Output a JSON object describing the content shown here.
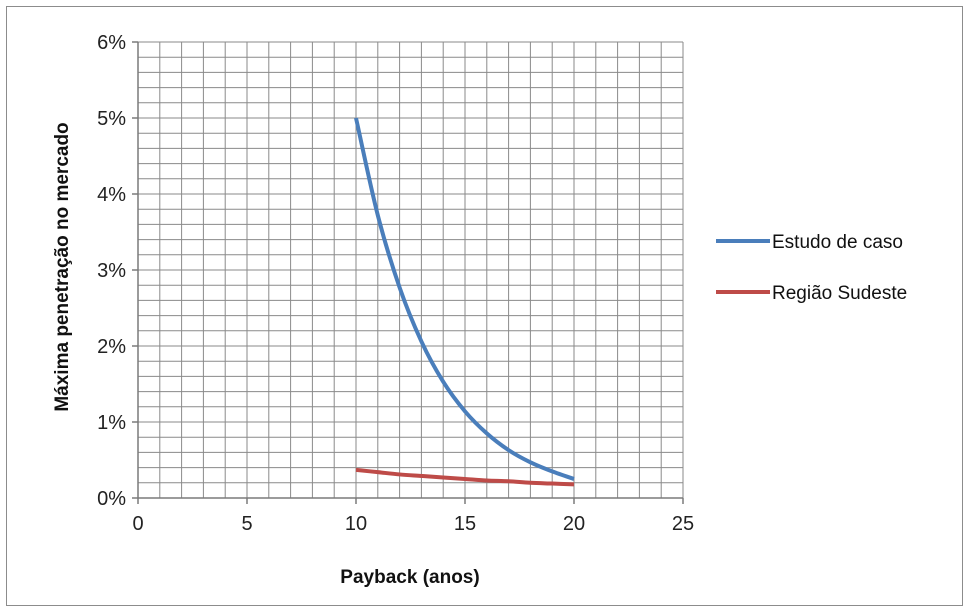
{
  "chart_data": {
    "type": "line",
    "title": "",
    "xlabel": "Payback (anos)",
    "ylabel": "Máxima penetração no mercado",
    "xlim": [
      0,
      25
    ],
    "ylim": [
      0,
      0.06
    ],
    "x_ticks": [
      0,
      5,
      10,
      15,
      20,
      25
    ],
    "x_tick_labels": [
      "0",
      "5",
      "10",
      "15",
      "20",
      "25"
    ],
    "y_ticks": [
      0,
      0.01,
      0.02,
      0.03,
      0.04,
      0.05,
      0.06
    ],
    "y_tick_labels": [
      "0%",
      "1%",
      "2%",
      "3%",
      "4%",
      "5%",
      "6%"
    ],
    "grid": true,
    "minor_grid": true,
    "legend_position": "right",
    "series": [
      {
        "name": "Estudo de caso",
        "color": "#4a7ebb",
        "x": [
          10,
          11,
          12,
          13,
          14,
          15,
          16,
          17,
          18,
          19,
          20
        ],
        "y": [
          0.05,
          0.0372,
          0.0277,
          0.0206,
          0.0153,
          0.0114,
          0.0085,
          0.0063,
          0.0047,
          0.0035,
          0.0025
        ]
      },
      {
        "name": "Região Sudeste",
        "color": "#be4b48",
        "x": [
          10,
          11,
          12,
          13,
          14,
          15,
          16,
          17,
          18,
          19,
          20
        ],
        "y": [
          0.0037,
          0.0034,
          0.0031,
          0.0029,
          0.0027,
          0.0025,
          0.0023,
          0.0022,
          0.002,
          0.0019,
          0.0018
        ]
      }
    ]
  }
}
